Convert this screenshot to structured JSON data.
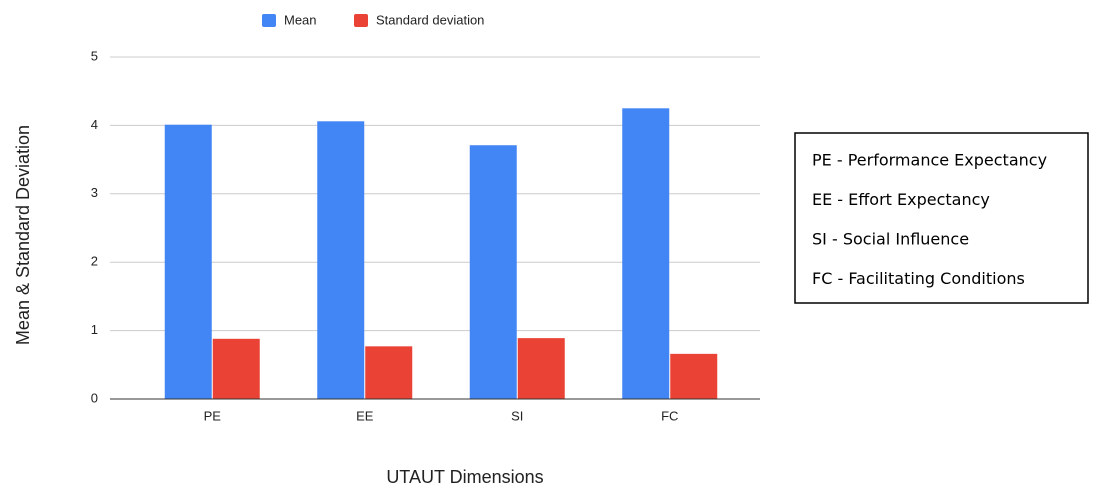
{
  "chart_data": {
    "type": "bar",
    "categories": [
      "PE",
      "EE",
      "SI",
      "FC"
    ],
    "series": [
      {
        "name": "Mean",
        "color": "#4285f4",
        "values": [
          4.01,
          4.06,
          3.71,
          4.25
        ]
      },
      {
        "name": "Standard deviation",
        "color": "#ea4335",
        "values": [
          0.88,
          0.77,
          0.89,
          0.66
        ]
      }
    ],
    "ylim": [
      0,
      5
    ],
    "yticks": [
      0,
      1,
      2,
      3,
      4,
      5
    ],
    "grid": true,
    "ylabel": "Mean & Standard Deviation",
    "xlabel": "UTAUT Dimensions",
    "legend": "top",
    "annotations": [
      "PE - Performance Expectancy",
      "EE - Effort Expectancy",
      "SI - Social Influence",
      "FC - Facilitating Conditions"
    ]
  }
}
